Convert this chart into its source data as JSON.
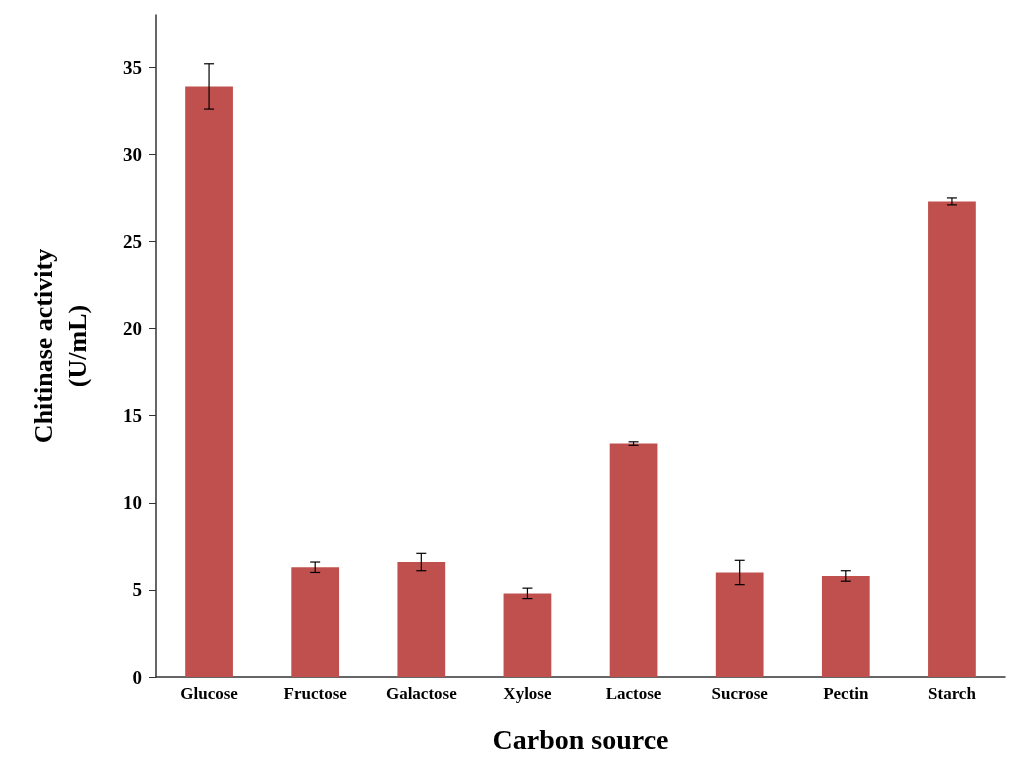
{
  "chart_data": {
    "type": "bar",
    "xlabel": "Carbon source",
    "ylabel": "Chitinase activity\n(U/mL)",
    "categories": [
      "Glucose",
      "Fructose",
      "Galactose",
      "Xylose",
      "Lactose",
      "Sucrose",
      "Pectin",
      "Starch"
    ],
    "values": [
      33.9,
      6.3,
      6.6,
      4.8,
      13.4,
      6.0,
      5.8,
      27.3
    ],
    "errors": [
      1.3,
      0.3,
      0.5,
      0.3,
      0.1,
      0.7,
      0.3,
      0.2
    ],
    "color": "#c0504d",
    "ylim": [
      0,
      38
    ],
    "yticks": [
      0,
      5,
      10,
      15,
      20,
      25,
      30,
      35
    ],
    "grid": false
  }
}
